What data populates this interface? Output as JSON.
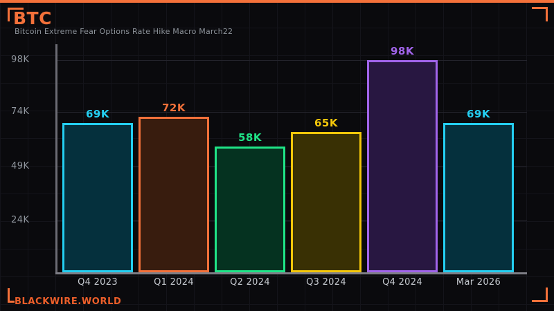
{
  "frame": {
    "accent_color": "#f4713a",
    "brand_color": "#ed5f2a",
    "title": "BTC",
    "subtitle": "Bitcoin Extreme Fear Options Rate Hike Macro March22",
    "brand": "BLACKWIRE.WORLD"
  },
  "chart_data": {
    "type": "bar",
    "title": "BTC",
    "subtitle": "Bitcoin Extreme Fear Options Rate Hike Macro March22",
    "categories": [
      "Q4 2023",
      "Q1 2024",
      "Q2 2024",
      "Q3 2024",
      "Q4 2024",
      "Mar 2026"
    ],
    "values": [
      69,
      72,
      58,
      65,
      98,
      69
    ],
    "value_labels": [
      "69K",
      "72K",
      "58K",
      "65K",
      "98K",
      "69K"
    ],
    "bar_border_colors": [
      "#24cff2",
      "#f2713a",
      "#1fe487",
      "#f4c70a",
      "#a164ea",
      "#24cff2"
    ],
    "bar_fill_colors": [
      "#05303d",
      "#381c0e",
      "#053220",
      "#393004",
      "#281741",
      "#05303d"
    ],
    "y_ticks": [
      {
        "label": "98K",
        "value": 98
      },
      {
        "label": "74K",
        "value": 74
      },
      {
        "label": "49K",
        "value": 49
      },
      {
        "label": "24K",
        "value": 24
      }
    ],
    "ylim": [
      0,
      105
    ],
    "xlabel": "",
    "ylabel": "",
    "legend": "none",
    "grid": "horizontal-subtle",
    "unit": "USD thousands"
  }
}
